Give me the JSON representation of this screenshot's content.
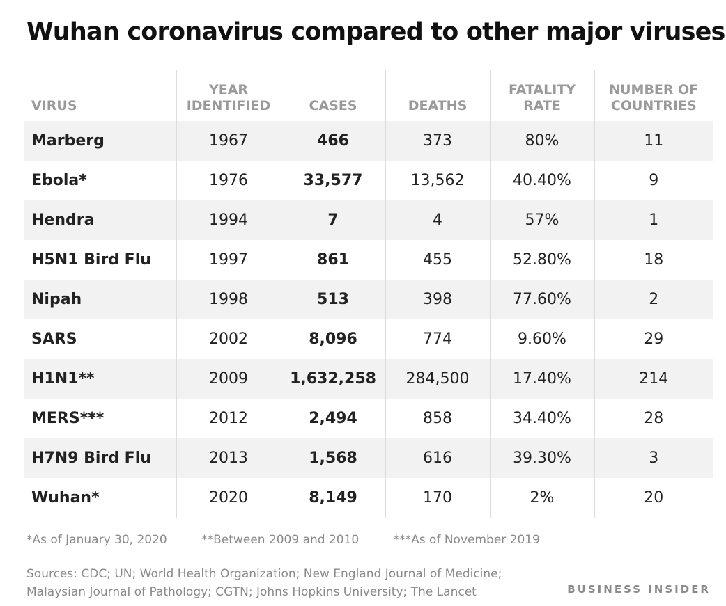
{
  "chart_data": {
    "type": "table",
    "title": "Wuhan coronavirus compared to other major viruses",
    "columns": [
      "VIRUS",
      "YEAR IDENTIFIED",
      "CASES",
      "DEATHS",
      "FATALITY RATE",
      "NUMBER OF COUNTRIES"
    ],
    "rows": [
      {
        "virus": "Marberg",
        "year": "1967",
        "cases": "466",
        "deaths": "373",
        "fatality_rate": "80%",
        "countries": "11"
      },
      {
        "virus": "Ebola*",
        "year": "1976",
        "cases": "33,577",
        "deaths": "13,562",
        "fatality_rate": "40.40%",
        "countries": "9"
      },
      {
        "virus": "Hendra",
        "year": "1994",
        "cases": "7",
        "deaths": "4",
        "fatality_rate": "57%",
        "countries": "1"
      },
      {
        "virus": "H5N1 Bird Flu",
        "year": "1997",
        "cases": "861",
        "deaths": "455",
        "fatality_rate": "52.80%",
        "countries": "18"
      },
      {
        "virus": "Nipah",
        "year": "1998",
        "cases": "513",
        "deaths": "398",
        "fatality_rate": "77.60%",
        "countries": "2"
      },
      {
        "virus": "SARS",
        "year": "2002",
        "cases": "8,096",
        "deaths": "774",
        "fatality_rate": "9.60%",
        "countries": "29"
      },
      {
        "virus": "H1N1**",
        "year": "2009",
        "cases": "1,632,258",
        "deaths": "284,500",
        "fatality_rate": "17.40%",
        "countries": "214"
      },
      {
        "virus": "MERS***",
        "year": "2012",
        "cases": "2,494",
        "deaths": "858",
        "fatality_rate": "34.40%",
        "countries": "28"
      },
      {
        "virus": "H7N9 Bird Flu",
        "year": "2013",
        "cases": "1,568",
        "deaths": "616",
        "fatality_rate": "39.30%",
        "countries": "3"
      },
      {
        "virus": "Wuhan*",
        "year": "2020",
        "cases": "8,149",
        "deaths": "170",
        "fatality_rate": "2%",
        "countries": "20"
      }
    ]
  },
  "header": {
    "virus": "VIRUS",
    "year_line1": "YEAR",
    "year_line2": "IDENTIFIED",
    "cases": "CASES",
    "deaths": "DEATHS",
    "fatality_line1": "FATALITY",
    "fatality_line2": "RATE",
    "countries_line1": "NUMBER OF",
    "countries_line2": "COUNTRIES"
  },
  "footnotes": [
    "*As of January 30, 2020",
    "**Between 2009 and 2010",
    "***As of November 2019"
  ],
  "sources": {
    "line1": "Sources: CDC; UN; World Health Organization; New England Journal of Medicine;",
    "line2": "Malaysian Journal of Pathology; CGTN; Johns Hopkins University; The Lancet"
  },
  "brand": "BUSINESS INSIDER",
  "colors": {
    "title": "#111111",
    "header_text": "#9a9a9a",
    "row_stripe": "#f2f2f2",
    "footnote_text": "#8a8a8a"
  }
}
